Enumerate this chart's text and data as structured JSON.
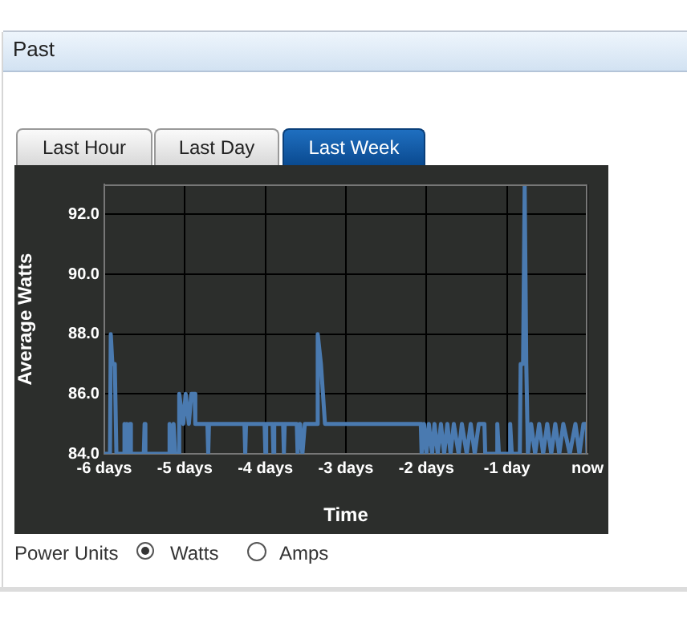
{
  "chart_data": {
    "type": "line",
    "title": "Past",
    "xlabel": "Time",
    "ylabel": "Average Watts",
    "annotations": [
      "Last Hour",
      "Last Day",
      "Last Week",
      "Power Units",
      "Watts",
      "Amps"
    ],
    "xlim": [
      -6,
      0
    ],
    "xticks": [
      {
        "value": -6,
        "label": "-6 days"
      },
      {
        "value": -5,
        "label": "-5 days"
      },
      {
        "value": -4,
        "label": "-4 days"
      },
      {
        "value": -3,
        "label": "-3 days"
      },
      {
        "value": -2,
        "label": "-2 days"
      },
      {
        "value": -1,
        "label": "-1 day"
      },
      {
        "value": 0,
        "label": "now"
      }
    ],
    "ylim": [
      84,
      93
    ],
    "yticks": [
      {
        "value": 84,
        "label": "84.0"
      },
      {
        "value": 86,
        "label": "86.0"
      },
      {
        "value": 88,
        "label": "88.0"
      },
      {
        "value": 90,
        "label": "90.0"
      },
      {
        "value": 92,
        "label": "92.0"
      }
    ],
    "grid": true,
    "marker": "none",
    "line_style": "solid",
    "series": [
      {
        "color": "#4a7ab0",
        "x": [
          -6,
          -5.93,
          -5.92,
          -5.9,
          -5.87,
          -5.85,
          -5.76,
          -5.75,
          -5.74,
          -5.72,
          -5.7,
          -5.68,
          -5.67,
          -5.51,
          -5.5,
          -5.49,
          -5.2,
          -5.19,
          -5.17,
          -5.14,
          -5.12,
          -5.08,
          -5.07,
          -5.02,
          -4.99,
          -4.95,
          -4.92,
          -4.88,
          -4.87,
          -4.72,
          -4.71,
          -4.7,
          -4.26,
          -4.25,
          -4.24,
          -4.01,
          -4.0,
          -3.99,
          -3.91,
          -3.9,
          -3.89,
          -3.78,
          -3.77,
          -3.76,
          -3.61,
          -3.6,
          -3.57,
          -3.54,
          -3.51,
          -3.36,
          -3.35,
          -3.31,
          -3.26,
          -2.07,
          -2.06,
          -2.03,
          -2.0,
          -1.97,
          -1.93,
          -1.9,
          -1.86,
          -1.82,
          -1.78,
          -1.74,
          -1.7,
          -1.66,
          -1.6,
          -1.56,
          -1.5,
          -1.45,
          -1.4,
          -1.35,
          -1.28,
          -1.27,
          -1.13,
          -1.12,
          -1.1,
          -0.97,
          -0.96,
          -0.94,
          -0.84,
          -0.83,
          -0.8,
          -0.78,
          -0.76,
          -0.74,
          -0.7,
          -0.65,
          -0.6,
          -0.55,
          -0.5,
          -0.45,
          -0.4,
          -0.35,
          -0.3,
          -0.22,
          -0.15,
          -0.1,
          -0.05,
          -0.01,
          0
        ],
        "values": [
          84,
          84,
          88,
          87,
          87,
          84,
          84,
          85,
          84,
          85,
          84,
          85,
          84,
          84,
          85,
          84,
          84,
          85,
          84,
          85,
          84,
          84,
          86,
          85,
          86,
          85,
          86,
          86,
          85,
          85,
          84,
          85,
          85,
          84,
          85,
          85,
          84,
          85,
          85,
          84,
          85,
          85,
          84,
          85,
          85,
          84,
          85,
          84,
          85,
          85,
          88,
          87,
          85,
          85,
          84,
          85,
          84,
          85,
          84,
          85,
          84,
          85,
          84,
          85,
          84,
          85,
          84,
          85,
          84,
          85,
          84,
          85,
          85,
          84,
          84,
          85,
          84,
          84,
          85,
          84,
          84,
          87,
          87,
          93,
          87,
          84,
          85,
          84,
          85,
          84,
          85,
          84,
          85,
          84,
          85,
          84,
          85,
          84,
          85,
          85,
          84
        ]
      }
    ]
  }
}
